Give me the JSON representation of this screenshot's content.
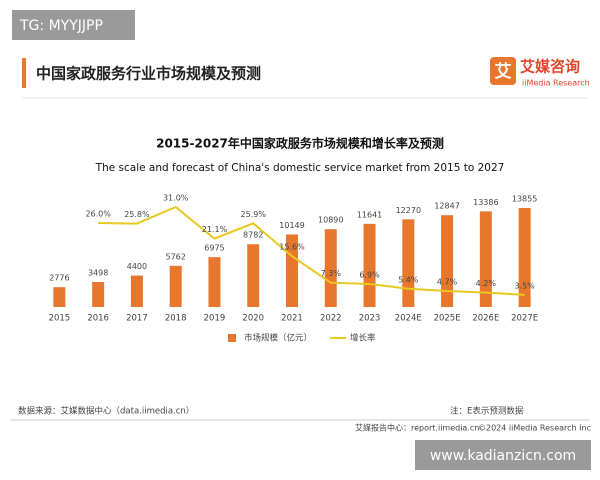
{
  "watermark_top": "TG: MYYJJPP",
  "header": {
    "title": "中国家政服务行业市场规模及预测"
  },
  "logo": {
    "icon": "艾",
    "name": "艾媒咨询",
    "sub": "iiMedia Research"
  },
  "chart_data": {
    "type": "bar",
    "title": "2015-2027年中国家政服务市场规模和增长率及预测",
    "subtitle": "The scale and forecast of China's domestic service market from 2015 to 2027",
    "categories": [
      "2015",
      "2016",
      "2017",
      "2018",
      "2019",
      "2020",
      "2021",
      "2022",
      "2023",
      "2024E",
      "2025E",
      "2026E",
      "2027E"
    ],
    "series": [
      {
        "name": "市场规模（亿元）",
        "type": "bar",
        "color": "#e8772e",
        "values": [
          2776,
          3498,
          4400,
          5762,
          6975,
          8782,
          10149,
          10890,
          11641,
          12270,
          12847,
          13386,
          13855
        ]
      },
      {
        "name": "增长率",
        "type": "line",
        "color": "#e8c81e",
        "values": [
          null,
          26.0,
          25.8,
          31.0,
          21.1,
          25.9,
          15.6,
          7.3,
          6.9,
          5.4,
          4.7,
          4.2,
          3.5
        ],
        "value_labels": [
          null,
          "26.0%",
          "25.8%",
          "31.0%",
          "21.1%",
          "25.9%",
          "15.6%",
          "7.3%",
          "6.9%",
          "5.4%",
          "4.7%",
          "4.2%",
          "3.5%"
        ]
      }
    ],
    "legend": "bottom"
  },
  "footer": {
    "source": "数据来源：艾媒数据中心（data.iimedia.cn）",
    "note": "注：E表示预测数据",
    "report": "艾媒报告中心：report.iimedia.cn",
    "copyright": "©2024  iiMedia Research  Inc"
  },
  "watermark_bottom": "www.kadianzicn.com"
}
